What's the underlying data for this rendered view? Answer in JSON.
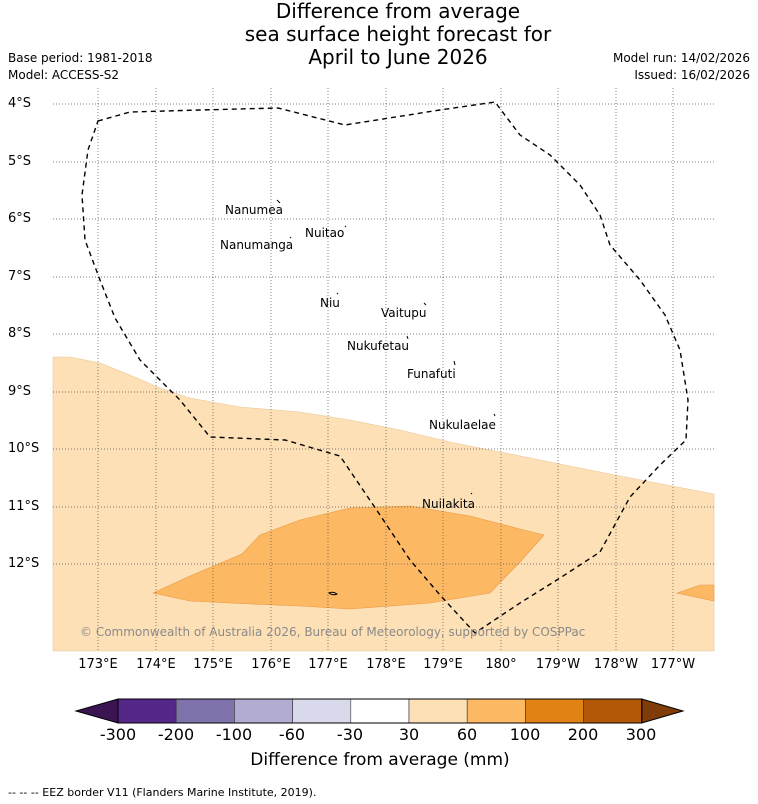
{
  "title_lines": [
    "Difference from average",
    "sea surface height forecast for",
    "April to June 2026"
  ],
  "base_period": "Base period: 1981-2018",
  "model": "Model: ACCESS-S2",
  "model_run": "Model run: 14/02/2026",
  "issued": "Issued: 16/02/2026",
  "lat_labels": [
    "4°S",
    "5°S",
    "6°S",
    "7°S",
    "8°S",
    "9°S",
    "10°S",
    "11°S",
    "12°S"
  ],
  "lon_labels": [
    "173°E",
    "174°E",
    "175°E",
    "176°E",
    "177°E",
    "178°E",
    "179°E",
    "180°",
    "179°W",
    "178°W",
    "177°W"
  ],
  "places": [
    "Nanumea",
    "Nuitao",
    "Nanumanga",
    "Niu",
    "Vaitupu",
    "Nukufetau",
    "Funafuti",
    "Nukulaelae",
    "Nuilakita"
  ],
  "copyright": "© Commonwealth of Australia 2026, Bureau of Meteorology, supported by COSPPac",
  "colorbar": {
    "ticks": [
      "-300",
      "-200",
      "-100",
      "-60",
      "-30",
      "30",
      "60",
      "100",
      "200",
      "300"
    ],
    "colors": [
      "#3a1552",
      "#542788",
      "#8073ac",
      "#b2abd2",
      "#d8daeb",
      "#ffffff",
      "#fee0b6",
      "#fdb863",
      "#e08214",
      "#b35806",
      "#7f3b08"
    ],
    "title": "Difference from average (mm)"
  },
  "legend_footnote": "-- -- -- EEZ border V11 (Flanders Marine Institute, 2019)."
}
